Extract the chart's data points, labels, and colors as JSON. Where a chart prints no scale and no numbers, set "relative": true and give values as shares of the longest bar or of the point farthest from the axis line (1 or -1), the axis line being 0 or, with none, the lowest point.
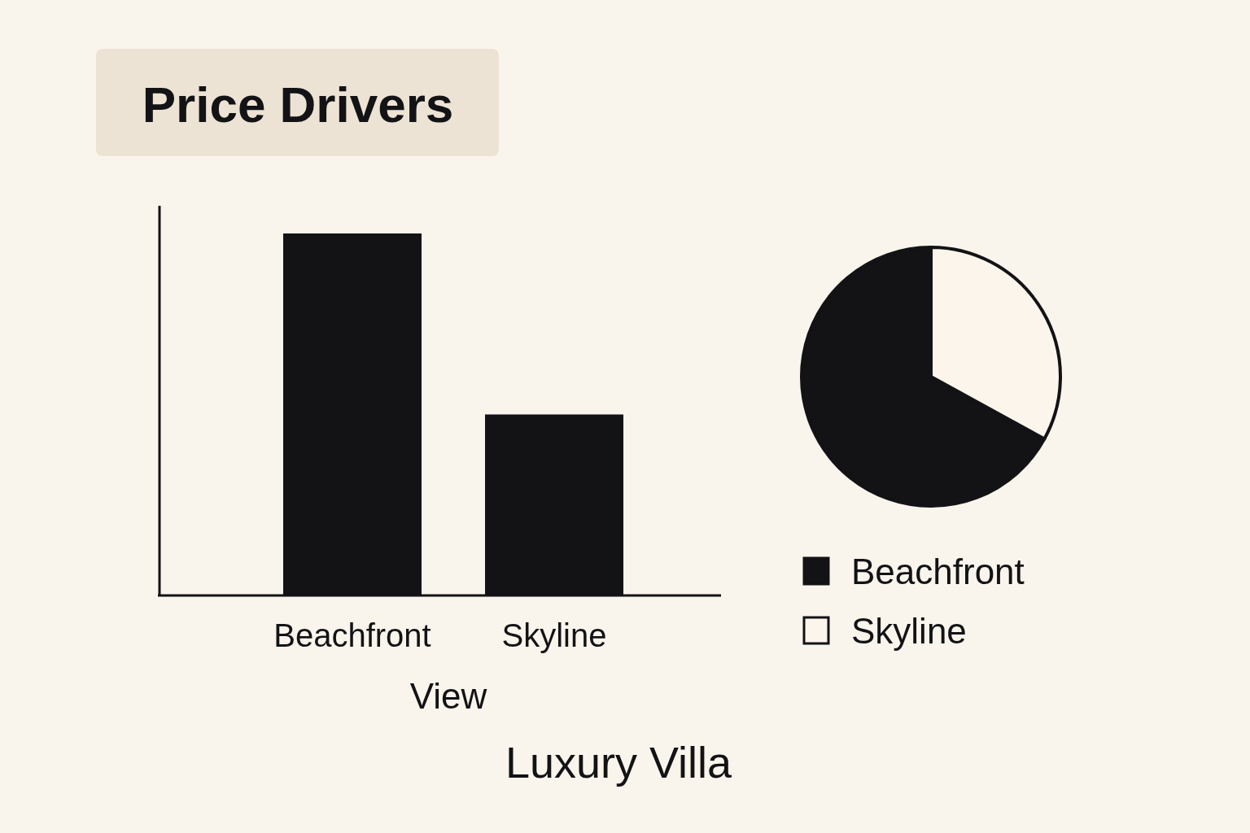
{
  "chart_data": [
    {
      "type": "bar",
      "title": "Price Drivers",
      "xlabel": "View",
      "annotations": [
        "Luxury Villa"
      ],
      "categories": [
        "Beachfront",
        "Skyline"
      ],
      "values": [
        1,
        0.5
      ],
      "color": "#131316",
      "relative": true
    },
    {
      "type": "pie",
      "categories": [
        "Beachfront",
        "Skyline"
      ],
      "values": [
        67,
        33
      ],
      "colors": [
        "#131316",
        "#fbf5ec"
      ],
      "legend": "bottom"
    }
  ]
}
